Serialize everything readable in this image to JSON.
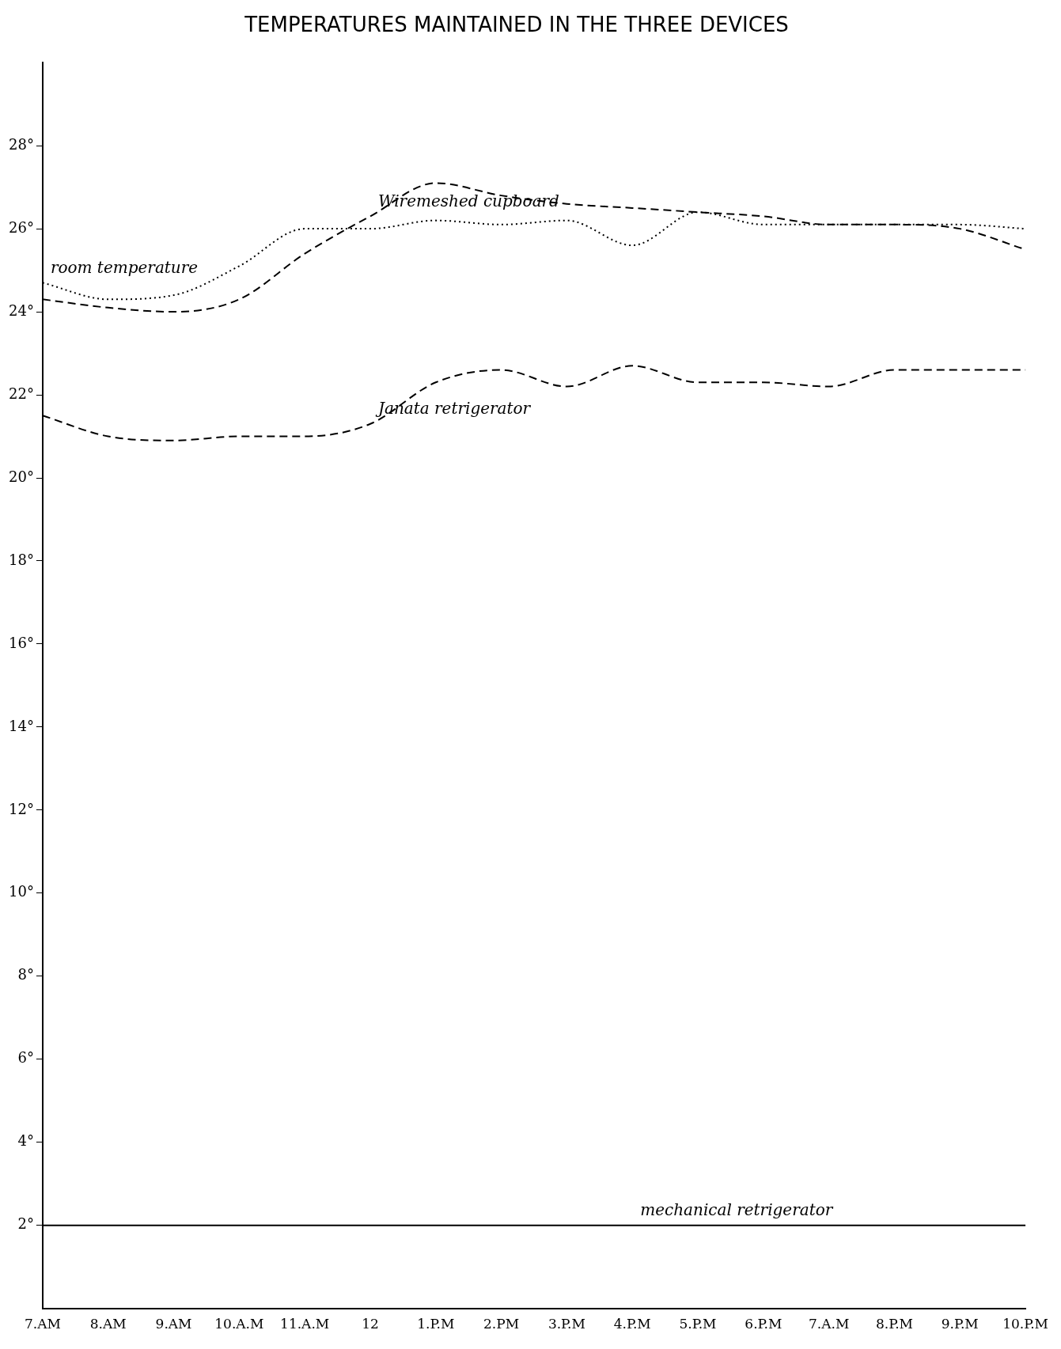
{
  "chart_data": {
    "type": "line",
    "title": "TEMPERATURES MAINTAINED IN THE THREE DEVICES",
    "categories": [
      "7.AM",
      "8.AM",
      "9.AM",
      "10.A.M",
      "11.A.M",
      "12",
      "1.P.M",
      "2.PM",
      "3.P.M",
      "4.P.M",
      "5.P.M",
      "6.P.M",
      "7.A.M",
      "8.P.M",
      "9.P.M",
      "10.P.M"
    ],
    "ylim": [
      0,
      30
    ],
    "yticks": [
      {
        "value": 2,
        "label": "2°"
      },
      {
        "value": 4,
        "label": "4°"
      },
      {
        "value": 6,
        "label": "6°"
      },
      {
        "value": 8,
        "label": "8°"
      },
      {
        "value": 10,
        "label": "10°"
      },
      {
        "value": 12,
        "label": "12°"
      },
      {
        "value": 14,
        "label": "14°"
      },
      {
        "value": 16,
        "label": "16°"
      },
      {
        "value": 18,
        "label": "18°"
      },
      {
        "value": 20,
        "label": "20°"
      },
      {
        "value": 22,
        "label": "22°"
      },
      {
        "value": 24,
        "label": "24°"
      },
      {
        "value": 26,
        "label": "26°"
      },
      {
        "value": 28,
        "label": "28°"
      }
    ],
    "grid": false,
    "legend": false,
    "marker": "none",
    "series": [
      {
        "name": "room temperature",
        "color": "#000000",
        "line_style": "dotted",
        "values": [
          24.7,
          24.3,
          24.4,
          25.1,
          26.0,
          26.0,
          26.2,
          26.1,
          26.2,
          25.6,
          26.4,
          26.1,
          26.1,
          26.1,
          26.1,
          26.0
        ]
      },
      {
        "name": "Wiremeshed cupboard",
        "color": "#000000",
        "line_style": "dashed",
        "values": [
          24.3,
          24.1,
          24.0,
          24.3,
          25.4,
          26.3,
          27.1,
          26.8,
          26.6,
          26.5,
          26.4,
          26.3,
          26.1,
          26.1,
          26.0,
          25.5
        ]
      },
      {
        "name": "Janata retrigerator",
        "color": "#000000",
        "line_style": "dashed",
        "values": [
          21.5,
          21.0,
          20.9,
          21.0,
          21.0,
          21.3,
          22.3,
          22.6,
          22.2,
          22.7,
          22.3,
          22.3,
          22.2,
          22.6,
          22.6,
          22.6
        ]
      },
      {
        "name": "mechanical retrigerator",
        "color": "#000000",
        "line_style": "solid",
        "values": [
          2,
          2,
          2,
          2,
          2,
          2,
          2,
          2,
          2,
          2,
          2,
          2,
          2,
          2,
          2,
          2
        ]
      }
    ]
  }
}
